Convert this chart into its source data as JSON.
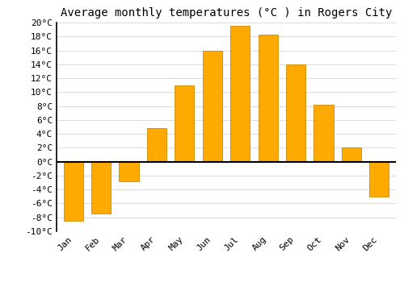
{
  "title": "Average monthly temperatures (°C ) in Rogers City",
  "months": [
    "Jan",
    "Feb",
    "Mar",
    "Apr",
    "May",
    "Jun",
    "Jul",
    "Aug",
    "Sep",
    "Oct",
    "Nov",
    "Dec"
  ],
  "values": [
    -8.5,
    -7.5,
    -2.8,
    4.8,
    11.0,
    16.0,
    19.5,
    18.3,
    14.0,
    8.2,
    2.0,
    -5.0
  ],
  "bar_color": "#FFAA00",
  "bar_edge_color": "#CC8800",
  "ylim": [
    -10,
    20
  ],
  "yticks": [
    -10,
    -8,
    -6,
    -4,
    -2,
    0,
    2,
    4,
    6,
    8,
    10,
    12,
    14,
    16,
    18,
    20
  ],
  "ytick_labels": [
    "-10°C",
    "-8°C",
    "-6°C",
    "-4°C",
    "-2°C",
    "0°C",
    "2°C",
    "4°C",
    "6°C",
    "8°C",
    "10°C",
    "12°C",
    "14°C",
    "16°C",
    "18°C",
    "20°C"
  ],
  "grid_color": "#dddddd",
  "bg_color": "#ffffff",
  "title_fontsize": 10,
  "tick_fontsize": 8,
  "bar_width": 0.7,
  "figsize": [
    5.0,
    3.5
  ],
  "dpi": 100
}
